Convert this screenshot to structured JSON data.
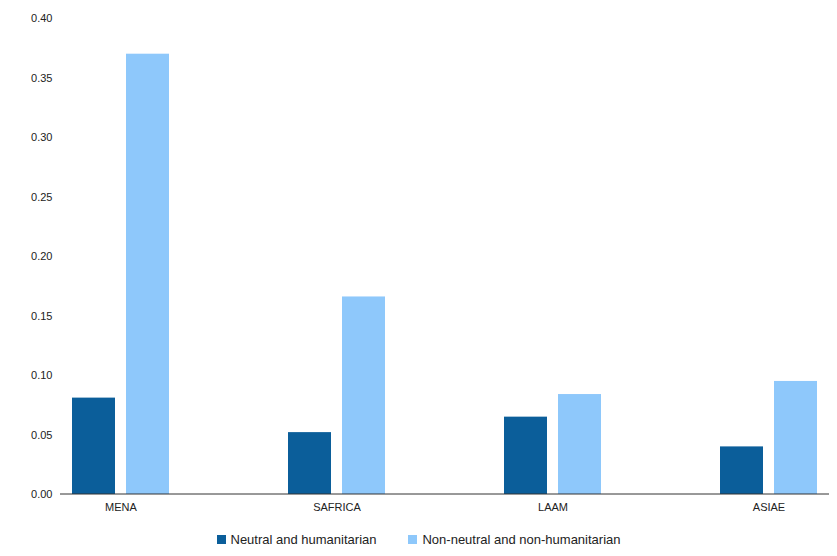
{
  "chart_data": {
    "type": "bar",
    "categories": [
      "MENA",
      "SAFRICA",
      "LAAM",
      "ASIAE"
    ],
    "series": [
      {
        "name": "Neutral and humanitarian",
        "color": "#0b5e9a",
        "values": [
          0.081,
          0.052,
          0.065,
          0.04
        ]
      },
      {
        "name": "Non-neutral and non-humanitarian",
        "color": "#8ec8fb",
        "values": [
          0.37,
          0.166,
          0.084,
          0.095
        ]
      }
    ],
    "ylim": [
      0,
      0.4
    ],
    "yticks": [
      {
        "value": 0,
        "label": "0.00"
      },
      {
        "value": 0.05,
        "label": "0.05"
      },
      {
        "value": 0.1,
        "label": "0.10"
      },
      {
        "value": 0.15,
        "label": "0.15"
      },
      {
        "value": 0.2,
        "label": "0.20"
      },
      {
        "value": 0.25,
        "label": "0.25"
      },
      {
        "value": 0.3,
        "label": "0.30"
      },
      {
        "value": 0.35,
        "label": "0.35"
      },
      {
        "value": 0.4,
        "label": "0.40"
      }
    ],
    "grid": false,
    "legend": "bottom"
  }
}
